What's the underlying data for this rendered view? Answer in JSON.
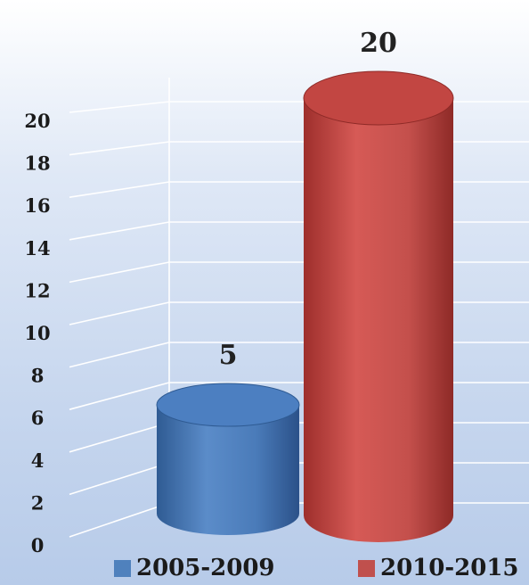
{
  "chart_data": {
    "type": "bar",
    "style": "3d-cylinder",
    "categories": [
      "2005-2009",
      "2010-2015"
    ],
    "values": [
      5,
      20
    ],
    "data_labels": [
      "5",
      "20"
    ],
    "yticks": [
      0,
      2,
      4,
      6,
      8,
      10,
      12,
      14,
      16,
      18,
      20
    ],
    "ylim": [
      0,
      20
    ],
    "title": "",
    "xlabel": "",
    "ylabel": "",
    "grid": true,
    "legend_position": "bottom",
    "colors": [
      "#4f81bd",
      "#c0504d"
    ],
    "legend": [
      {
        "label": "2005-2009",
        "color": "#4f81bd"
      },
      {
        "label": "2010-2015",
        "color": "#c0504d"
      }
    ]
  }
}
